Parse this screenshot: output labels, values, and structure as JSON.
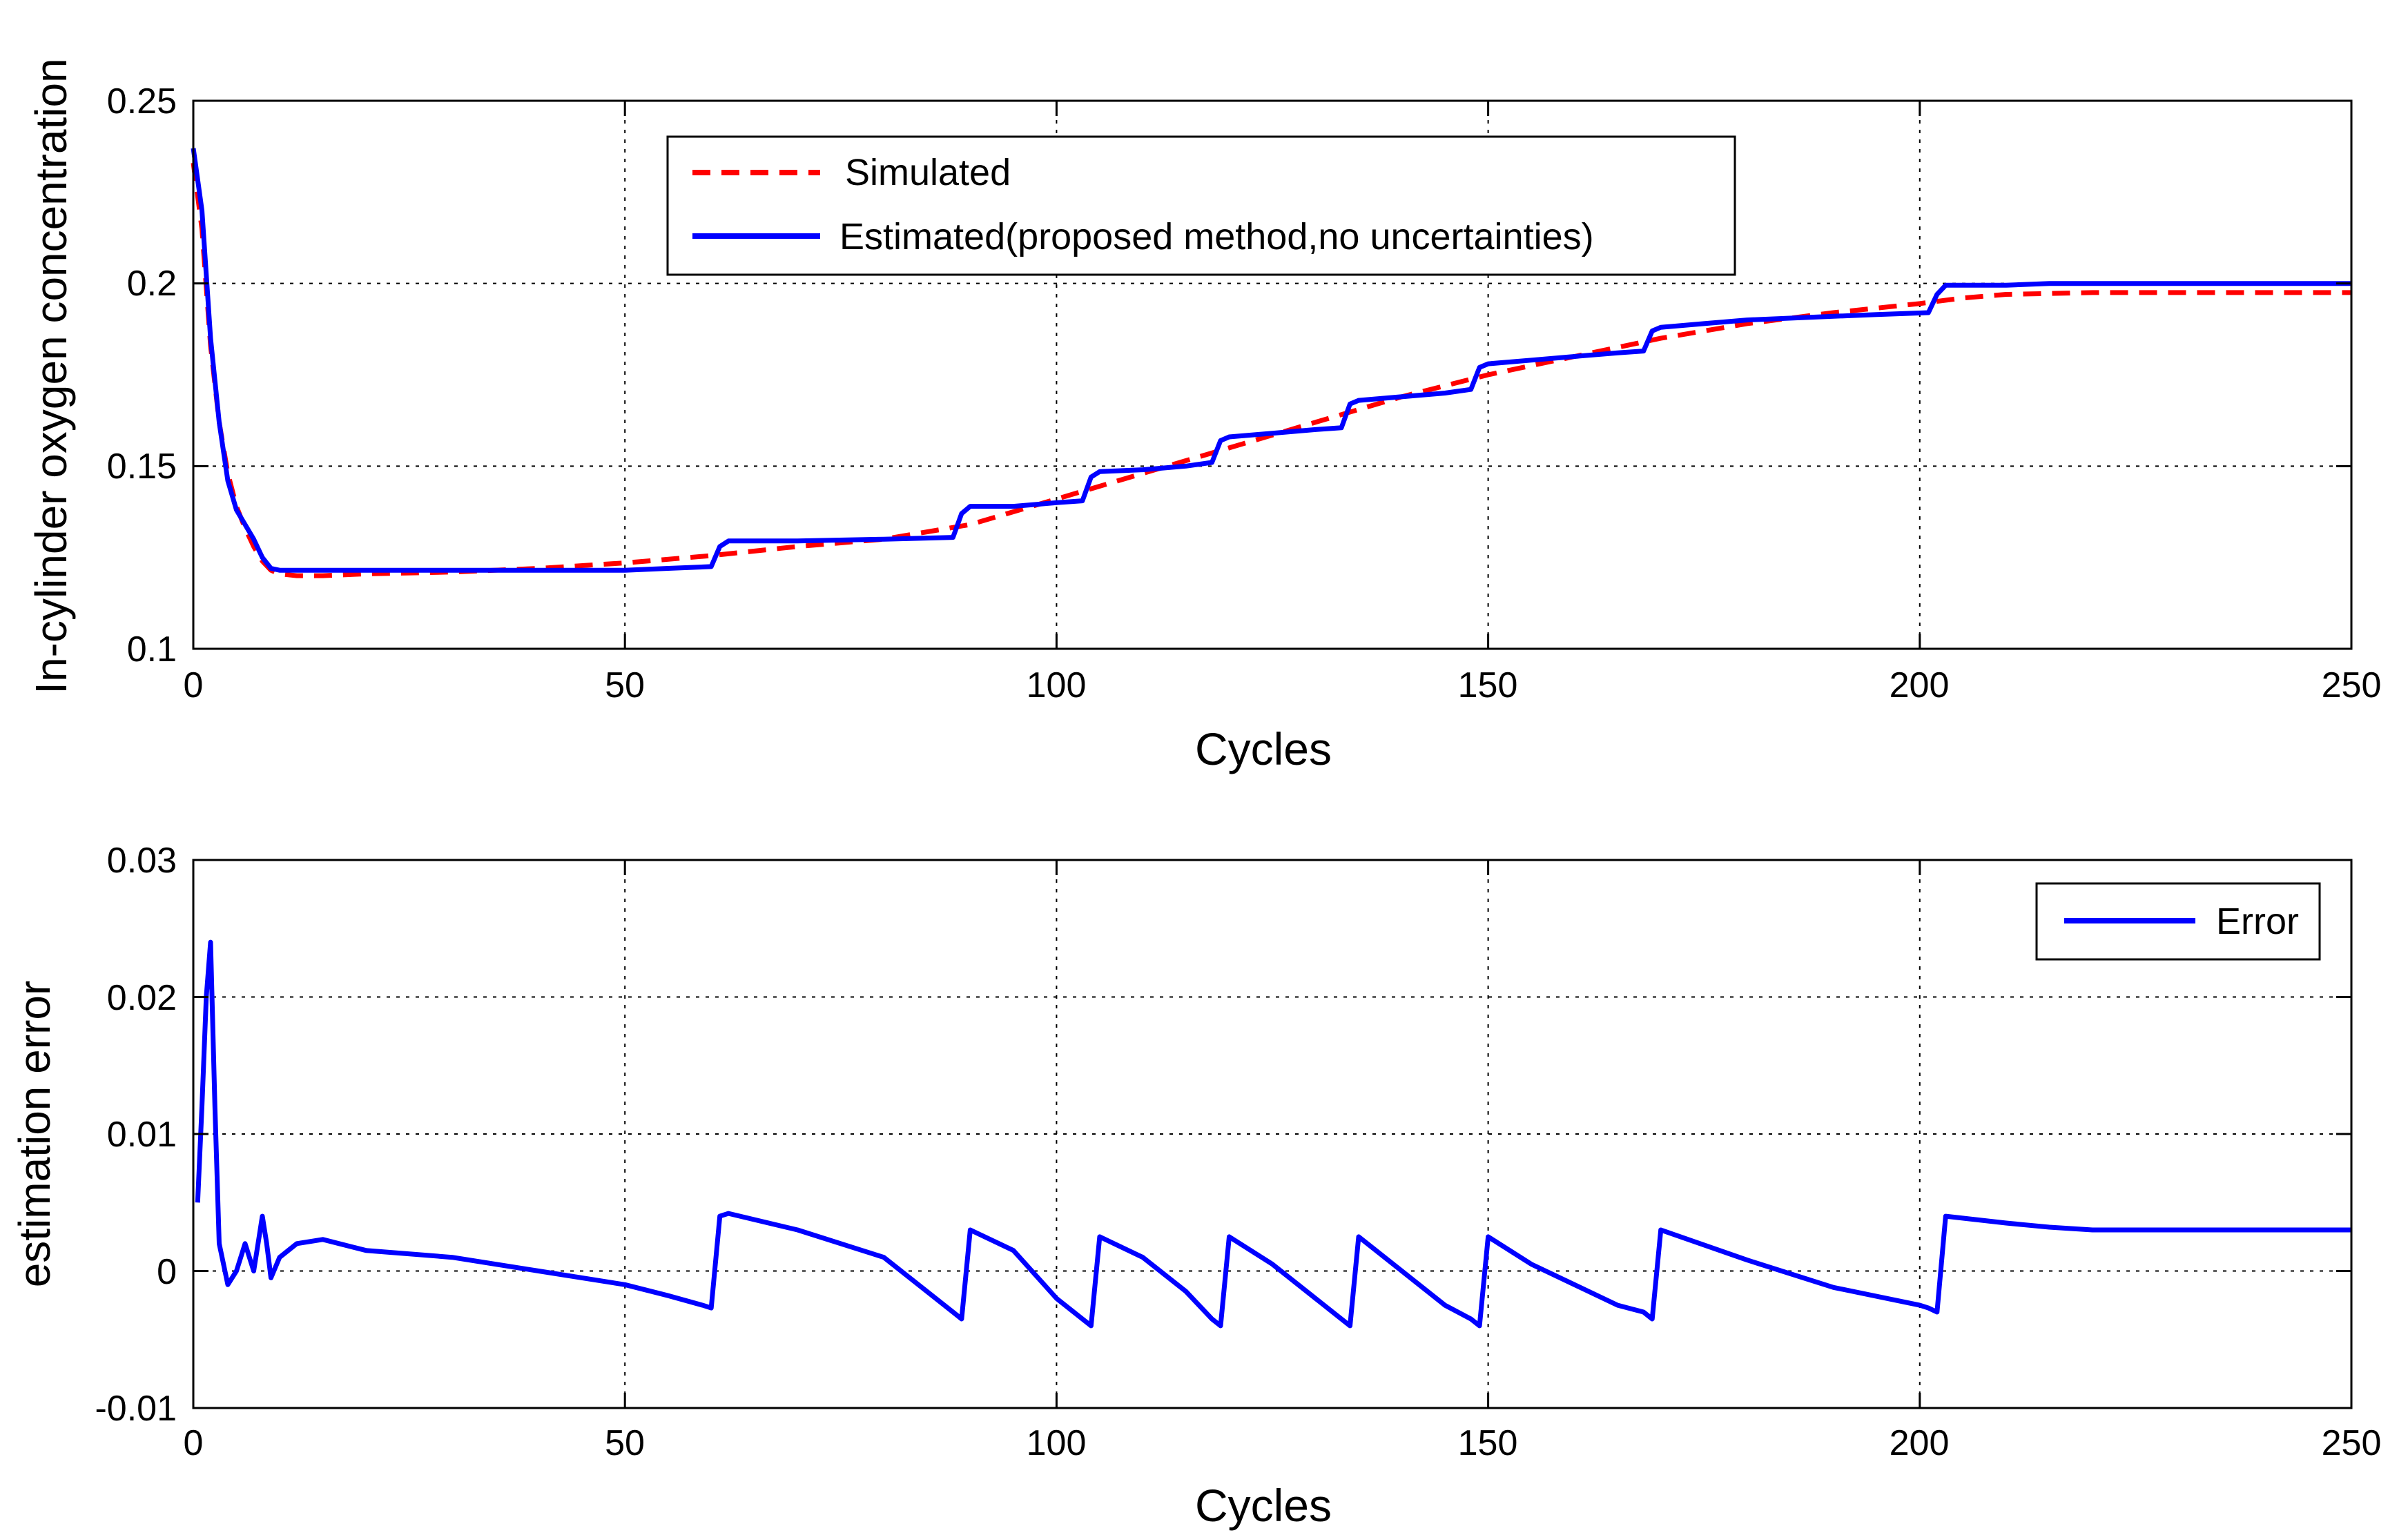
{
  "chart_data": [
    {
      "type": "line",
      "title": "",
      "xlabel": "Cycles",
      "ylabel": "In-cylinder oxygen concentration",
      "xlim": [
        0,
        250
      ],
      "ylim": [
        0.1,
        0.25
      ],
      "xticks": [
        0,
        50,
        100,
        150,
        200,
        250
      ],
      "xtick_labels": [
        "0",
        "50",
        "100",
        "150",
        "200",
        "250"
      ],
      "yticks": [
        0.1,
        0.15,
        0.2,
        0.25
      ],
      "ytick_labels": [
        "0.1",
        "0.15",
        "0.2",
        "0.25"
      ],
      "grid": true,
      "legend_position": "top-center",
      "series": [
        {
          "name": "Simulated",
          "color": "#ff0000",
          "style": "dashed",
          "x": [
            0,
            1,
            2,
            3,
            4,
            5,
            6,
            7,
            8,
            9,
            10,
            12,
            15,
            20,
            30,
            40,
            50,
            60,
            70,
            80,
            90,
            100,
            110,
            120,
            130,
            140,
            150,
            160,
            170,
            180,
            190,
            200,
            205,
            210,
            220,
            230,
            240,
            250
          ],
          "y": [
            0.233,
            0.215,
            0.183,
            0.162,
            0.148,
            0.139,
            0.133,
            0.128,
            0.124,
            0.1215,
            0.1205,
            0.12,
            0.12,
            0.1205,
            0.121,
            0.122,
            0.1235,
            0.1255,
            0.128,
            0.13,
            0.134,
            0.141,
            0.148,
            0.155,
            0.162,
            0.169,
            0.175,
            0.18,
            0.185,
            0.189,
            0.192,
            0.1945,
            0.196,
            0.197,
            0.1975,
            0.1975,
            0.1975,
            0.1975
          ]
        },
        {
          "name": "Estimated(proposed method,no uncertainties)",
          "color": "#0000ff",
          "style": "solid",
          "x": [
            0,
            1,
            2,
            3,
            4,
            5,
            6,
            7,
            8,
            9,
            10,
            15,
            20,
            30,
            40,
            50,
            55,
            60,
            61,
            62,
            70,
            80,
            88,
            89,
            90,
            95,
            100,
            103,
            104,
            105,
            110,
            115,
            118,
            119,
            120,
            125,
            130,
            133,
            134,
            135,
            140,
            145,
            148,
            149,
            150,
            155,
            160,
            165,
            168,
            169,
            170,
            175,
            180,
            190,
            195,
            201,
            202,
            203,
            204,
            210,
            215,
            220,
            230,
            240,
            250
          ],
          "y": [
            0.237,
            0.22,
            0.185,
            0.162,
            0.146,
            0.138,
            0.134,
            0.13,
            0.125,
            0.122,
            0.1215,
            0.1215,
            0.1215,
            0.1215,
            0.1215,
            0.1215,
            0.122,
            0.1225,
            0.128,
            0.1295,
            0.1295,
            0.13,
            0.1305,
            0.137,
            0.139,
            0.139,
            0.14,
            0.1405,
            0.147,
            0.1485,
            0.149,
            0.15,
            0.151,
            0.157,
            0.158,
            0.159,
            0.16,
            0.1605,
            0.167,
            0.168,
            0.169,
            0.17,
            0.171,
            0.177,
            0.178,
            0.179,
            0.18,
            0.181,
            0.1815,
            0.187,
            0.188,
            0.189,
            0.19,
            0.191,
            0.1915,
            0.192,
            0.197,
            0.1995,
            0.1995,
            0.1995,
            0.2,
            0.2,
            0.2,
            0.2,
            0.2
          ]
        }
      ]
    },
    {
      "type": "line",
      "title": "",
      "xlabel": "Cycles",
      "ylabel": "estimation error",
      "xlim": [
        0,
        250
      ],
      "ylim": [
        -0.01,
        0.03
      ],
      "xticks": [
        0,
        50,
        100,
        150,
        200,
        250
      ],
      "xtick_labels": [
        "0",
        "50",
        "100",
        "150",
        "200",
        "250"
      ],
      "yticks": [
        -0.01,
        0,
        0.01,
        0.02,
        0.03
      ],
      "ytick_labels": [
        "-0.01",
        "0",
        "0.01",
        "0.02",
        "0.03"
      ],
      "grid": true,
      "legend_position": "top-right",
      "series": [
        {
          "name": "Error",
          "color": "#0000ff",
          "style": "solid",
          "x": [
            0.5,
            1,
            1.5,
            2,
            2.5,
            3,
            4,
            5,
            6,
            7,
            7.5,
            8,
            8.5,
            9,
            10,
            12,
            15,
            20,
            30,
            40,
            50,
            55,
            59,
            60,
            61,
            62,
            70,
            80,
            88,
            89,
            90,
            95,
            100,
            103,
            104,
            105,
            110,
            115,
            118,
            119,
            120,
            125,
            130,
            133,
            134,
            135,
            140,
            145,
            148,
            149,
            150,
            155,
            160,
            165,
            168,
            169,
            170,
            180,
            190,
            200,
            201,
            202,
            203,
            210,
            215,
            220,
            230,
            240,
            250
          ],
          "y": [
            0.005,
            0.012,
            0.02,
            0.024,
            0.012,
            0.002,
            -0.001,
            0,
            0.002,
            0,
            0.002,
            0.004,
            0.002,
            -0.0005,
            0.001,
            0.002,
            0.0023,
            0.0015,
            0.001,
            0,
            -0.001,
            -0.0018,
            -0.0025,
            -0.0027,
            0.004,
            0.0042,
            0.003,
            0.001,
            -0.003,
            -0.0035,
            0.003,
            0.0015,
            -0.002,
            -0.0035,
            -0.004,
            0.0025,
            0.001,
            -0.0015,
            -0.0035,
            -0.004,
            0.0025,
            0.0005,
            -0.002,
            -0.0035,
            -0.004,
            0.0025,
            0,
            -0.0025,
            -0.0035,
            -0.004,
            0.0025,
            0.0005,
            -0.001,
            -0.0025,
            -0.003,
            -0.0035,
            0.003,
            0.0008,
            -0.0012,
            -0.0025,
            -0.0027,
            -0.003,
            0.004,
            0.0035,
            0.0032,
            0.003,
            0.003,
            0.003,
            0.003
          ]
        }
      ]
    }
  ]
}
